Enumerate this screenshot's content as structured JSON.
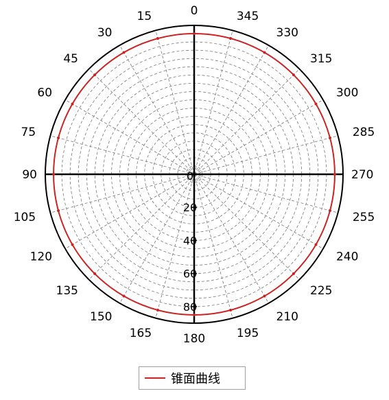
{
  "chart_data": {
    "type": "polar",
    "title": "",
    "angle_ticks": [
      "0",
      "15",
      "30",
      "45",
      "60",
      "75",
      "90",
      "105",
      "120",
      "135",
      "150",
      "165",
      "180",
      "195",
      "210",
      "225",
      "240",
      "255",
      "270",
      "285",
      "300",
      "315",
      "330",
      "345"
    ],
    "radial_ticks": [
      "0",
      "20",
      "40",
      "60",
      "80"
    ],
    "radial_range": [
      0,
      90
    ],
    "grid": true,
    "legend_position": "bottom",
    "series": [
      {
        "name": "锥面曲线",
        "color": "#cc2222",
        "angles": [
          0,
          15,
          30,
          45,
          60,
          75,
          90,
          105,
          120,
          135,
          150,
          165,
          180,
          195,
          210,
          225,
          240,
          255,
          270,
          285,
          300,
          315,
          330,
          345
        ],
        "values": [
          85,
          85,
          85,
          85,
          85,
          85,
          85,
          85,
          85,
          85,
          85,
          85,
          85,
          85,
          85,
          85,
          85,
          85,
          85,
          85,
          85,
          85,
          85,
          85
        ]
      }
    ]
  },
  "legend": {
    "label": "锥面曲线"
  }
}
